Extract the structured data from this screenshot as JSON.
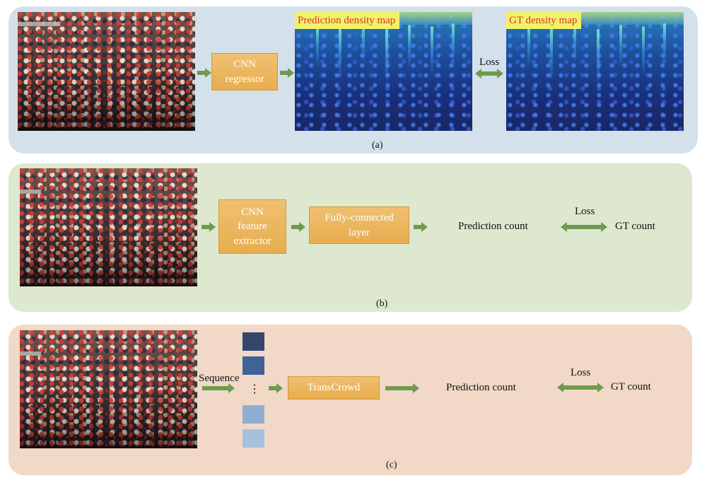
{
  "panel_a": {
    "prediction_map_label": "Prediction density map",
    "gt_map_label": "GT density map",
    "regressor_label": "CNN\nregressor",
    "loss_label": "Loss",
    "caption": "(a)"
  },
  "panel_b": {
    "extractor_label": "CNN\nfeature\nextractor",
    "fc_label": "Fully-connected\nlayer",
    "prediction_label": "Prediction count",
    "loss_label": "Loss",
    "gt_label": "GT count",
    "caption": "(b)"
  },
  "panel_c": {
    "sequence_label": "Sequence",
    "ellipsis": "⋮",
    "transcrowd_label": "TransCrowd",
    "prediction_label": "Prediction count",
    "loss_label": "Loss",
    "gt_label": "GT count",
    "caption": "(c)",
    "token_colors": [
      "#34466a",
      "#3e6398",
      "#8eaed2",
      "#a8c0dc"
    ]
  },
  "colors": {
    "arrow": "#6e9b4f",
    "box": "#e9b055",
    "panel_a_bg": "#d4e1ea",
    "panel_b_bg": "#dde8cf",
    "panel_c_bg": "#f1d8c7",
    "map_label_bg": "#f2f26a",
    "map_label_text": "#d6352b"
  }
}
